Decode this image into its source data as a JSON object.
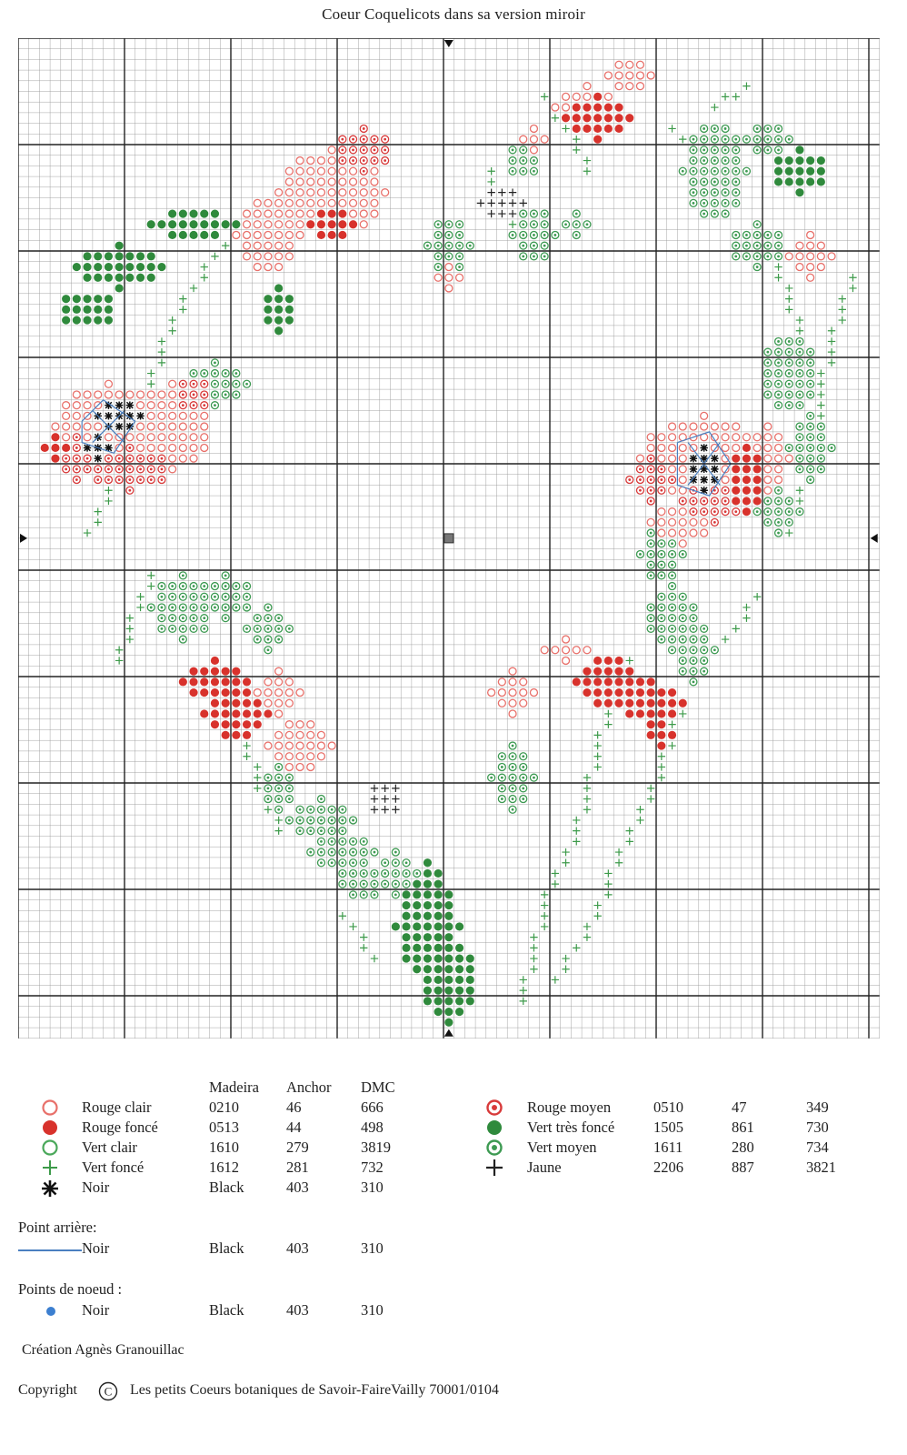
{
  "title": "Coeur Coquelicots dans sa version miroir",
  "colors": {
    "rouge_clair": "#e8706a",
    "rouge_fonce": "#d8322c",
    "vert_clair": "#4aa85a",
    "vert_fonce": "#3d9a4a",
    "noir": "#111111",
    "rouge_moyen": "#d83a3a",
    "vert_tres_fonce": "#2f8a3c",
    "vert_moyen": "#3d9a52",
    "jaune": "#222222",
    "backstitch": "#4a7fc0",
    "knot": "#3c7fd0",
    "grid_minor": "#9a9a9a",
    "grid_major": "#222222"
  },
  "legend": {
    "headers": [
      "Madeira",
      "Anchor",
      "DMC"
    ],
    "left": [
      {
        "icon": "ring-open-icon",
        "color": "rouge_clair",
        "name": "Rouge clair",
        "madeira": "0210",
        "anchor": "46",
        "dmc": "666"
      },
      {
        "icon": "dot-filled-icon",
        "color": "rouge_fonce",
        "name": "Rouge foncé",
        "madeira": "0513",
        "anchor": "44",
        "dmc": "498"
      },
      {
        "icon": "ring-open-icon",
        "color": "vert_clair",
        "name": "Vert clair",
        "madeira": "1610",
        "anchor": "279",
        "dmc": "3819"
      },
      {
        "icon": "plus-icon",
        "color": "vert_fonce",
        "name": "Vert foncé",
        "madeira": "1612",
        "anchor": "281",
        "dmc": "732"
      },
      {
        "icon": "asterisk-icon",
        "color": "noir",
        "name": "Noir",
        "madeira": "Black",
        "anchor": "403",
        "dmc": "310"
      }
    ],
    "right": [
      {
        "icon": "ring-dot-icon",
        "color": "rouge_moyen",
        "name": "Rouge moyen",
        "madeira": "0510",
        "anchor": "47",
        "dmc": "349"
      },
      {
        "icon": "dot-filled-icon",
        "color": "vert_tres_fonce",
        "name": "Vert très foncé",
        "madeira": "1505",
        "anchor": "861",
        "dmc": "730"
      },
      {
        "icon": "ring-dot-icon",
        "color": "vert_moyen",
        "name": "Vert moyen",
        "madeira": "1611",
        "anchor": "280",
        "dmc": "734"
      },
      {
        "icon": "plus-icon",
        "color": "jaune",
        "name": "Jaune",
        "madeira": "2206",
        "anchor": "887",
        "dmc": "3821"
      }
    ]
  },
  "backstitch": {
    "heading": "Point arrière:",
    "name": "Noir",
    "madeira": "Black",
    "anchor": "403",
    "dmc": "310"
  },
  "knots": {
    "heading": "Points de noeud :",
    "name": "Noir",
    "madeira": "Black",
    "anchor": "403",
    "dmc": "310"
  },
  "credit": "Création Agnès Granouillac",
  "copyright": {
    "label": "Copyright",
    "symbol": "C",
    "text": "Les petits Coeurs botaniques de Savoir-FaireVailly 70001/0104"
  }
}
